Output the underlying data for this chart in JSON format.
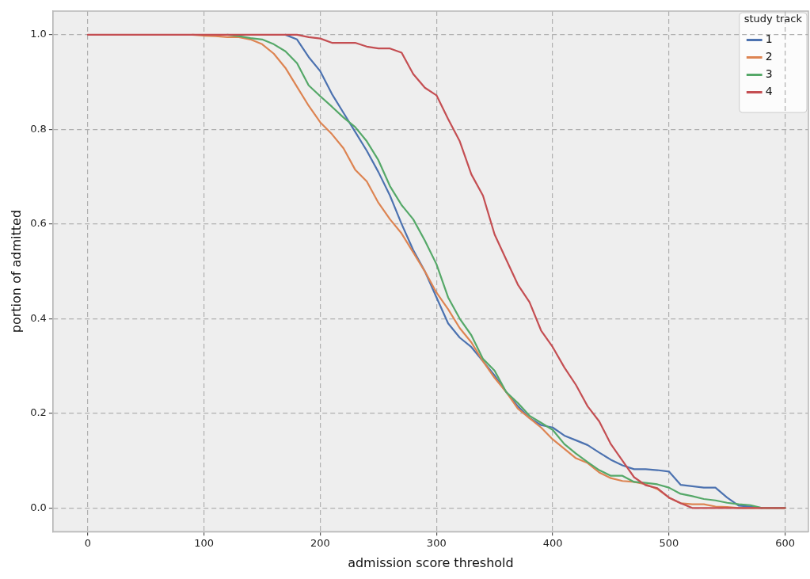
{
  "chart_data": {
    "type": "line",
    "xlabel": "admission score threshold",
    "ylabel": "portion of admitted",
    "legend_title": "study track",
    "legend": "top right",
    "grid": true,
    "marker": "none",
    "line_style": "solid",
    "x": [
      0,
      10,
      20,
      30,
      40,
      50,
      60,
      70,
      80,
      90,
      100,
      110,
      120,
      130,
      140,
      150,
      160,
      170,
      180,
      190,
      200,
      210,
      220,
      230,
      240,
      250,
      260,
      270,
      280,
      290,
      300,
      310,
      320,
      330,
      340,
      350,
      360,
      370,
      380,
      390,
      400,
      410,
      420,
      430,
      440,
      450,
      460,
      470,
      480,
      490,
      500,
      510,
      520,
      530,
      540,
      550,
      560,
      570,
      580,
      590,
      600
    ],
    "xlim": [
      -30,
      620
    ],
    "xticks": [
      0,
      100,
      200,
      300,
      400,
      500,
      600
    ],
    "ylim": [
      -0.05,
      1.05
    ],
    "yticks": [
      {
        "value": 0,
        "label": "0.0"
      },
      {
        "value": 0.2,
        "label": "0.2"
      },
      {
        "value": 0.4,
        "label": "0.4"
      },
      {
        "value": 0.6,
        "label": "0.6"
      },
      {
        "value": 0.8,
        "label": "0.8"
      },
      {
        "value": 1,
        "label": "1.0"
      }
    ],
    "series": [
      {
        "name": "1",
        "color": "#4c72b0",
        "values": [
          null,
          null,
          null,
          null,
          null,
          null,
          null,
          null,
          null,
          null,
          null,
          null,
          null,
          null,
          null,
          null,
          null,
          1,
          0.99,
          0.953,
          0.923,
          0.875,
          0.835,
          0.795,
          0.755,
          0.71,
          0.66,
          0.6,
          0.545,
          0.5,
          0.445,
          0.39,
          0.36,
          0.34,
          0.31,
          0.28,
          0.245,
          0.215,
          0.19,
          0.175,
          0.17,
          0.153,
          0.143,
          0.133,
          0.117,
          0.102,
          0.09,
          0.082,
          0.082,
          0.08,
          0.077,
          0.049,
          0.046,
          0.043,
          0.043,
          0.022,
          0.005,
          0.003,
          0,
          null,
          null
        ]
      },
      {
        "name": "2",
        "color": "#dd8452",
        "values": [
          null,
          null,
          null,
          null,
          null,
          null,
          null,
          null,
          null,
          1,
          0.998,
          0.997,
          0.995,
          0.995,
          0.99,
          0.98,
          0.96,
          0.93,
          0.89,
          0.85,
          0.815,
          0.79,
          0.76,
          0.715,
          0.69,
          0.645,
          0.61,
          0.58,
          0.54,
          0.5,
          0.455,
          0.42,
          0.38,
          0.35,
          0.31,
          0.275,
          0.245,
          0.21,
          0.19,
          0.17,
          0.145,
          0.125,
          0.105,
          0.095,
          0.075,
          0.063,
          0.057,
          0.055,
          0.05,
          0.04,
          0.022,
          0.01,
          0.008,
          0.008,
          0.003,
          0.002,
          0,
          0,
          0,
          0,
          0
        ]
      },
      {
        "name": "3",
        "color": "#55a868",
        "values": [
          null,
          null,
          null,
          null,
          null,
          null,
          null,
          null,
          null,
          null,
          null,
          null,
          1,
          0.997,
          0.993,
          0.99,
          0.98,
          0.965,
          0.94,
          0.893,
          0.87,
          0.848,
          0.825,
          0.805,
          0.775,
          0.735,
          0.68,
          0.64,
          0.61,
          0.565,
          0.515,
          0.445,
          0.4,
          0.365,
          0.315,
          0.29,
          0.245,
          0.222,
          0.195,
          0.18,
          0.165,
          0.135,
          0.115,
          0.097,
          0.08,
          0.068,
          0.068,
          0.055,
          0.053,
          0.05,
          0.043,
          0.03,
          0.025,
          0.019,
          0.016,
          0.011,
          0.008,
          0.006,
          0,
          0,
          0
        ]
      },
      {
        "name": "4",
        "color": "#c44e52",
        "values": [
          1,
          1,
          1,
          1,
          1,
          1,
          1,
          1,
          1,
          1,
          1,
          1,
          1,
          1,
          1,
          1,
          1,
          1,
          1,
          0.995,
          0.992,
          0.983,
          0.983,
          0.983,
          0.975,
          0.971,
          0.971,
          0.962,
          0.917,
          0.888,
          0.872,
          0.822,
          0.775,
          0.705,
          0.66,
          0.578,
          0.525,
          0.472,
          0.435,
          0.375,
          0.34,
          0.297,
          0.26,
          0.215,
          0.183,
          0.135,
          0.1,
          0.065,
          0.048,
          0.042,
          0.022,
          0.01,
          0,
          0,
          0,
          0,
          0,
          0,
          0,
          0,
          0
        ]
      }
    ]
  }
}
